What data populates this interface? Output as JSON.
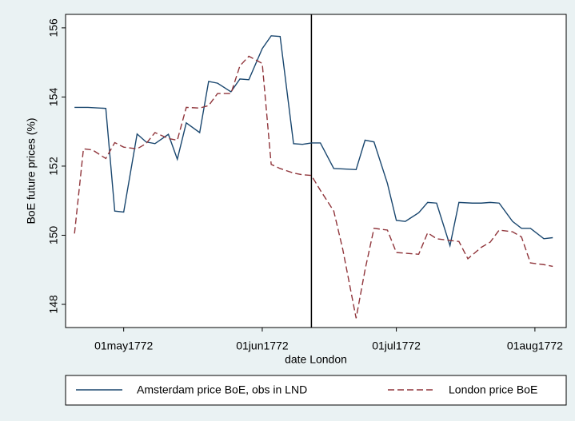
{
  "chart_data": {
    "type": "line",
    "xlabel": "date London",
    "ylabel": "BoE future prices (%)",
    "xlim": [
      "1772-04-18",
      "1772-08-08"
    ],
    "xticks": [
      {
        "value": "1772-05-01",
        "label": "01may1772"
      },
      {
        "value": "1772-06-01",
        "label": "01jun1772"
      },
      {
        "value": "1772-07-01",
        "label": "01jul1772"
      },
      {
        "value": "1772-08-01",
        "label": "01aug1772"
      }
    ],
    "ylim": [
      147.33,
      156.39
    ],
    "yticks": [
      148,
      150,
      152,
      154,
      156
    ],
    "grid": false,
    "vline": "1772-06-12",
    "legend": "bottom",
    "series": [
      {
        "name": "Amsterdam price BoE, obs in LND",
        "color": "#1a476f",
        "dash": "solid",
        "x": [
          "1772-04-20",
          "1772-04-23",
          "1772-04-27",
          "1772-04-29",
          "1772-05-01",
          "1772-05-04",
          "1772-05-06",
          "1772-05-08",
          "1772-05-11",
          "1772-05-13",
          "1772-05-15",
          "1772-05-18",
          "1772-05-20",
          "1772-05-22",
          "1772-05-25",
          "1772-05-27",
          "1772-05-29",
          "1772-06-01",
          "1772-06-03",
          "1772-06-05",
          "1772-06-08",
          "1772-06-10",
          "1772-06-12",
          "1772-06-14",
          "1772-06-17",
          "1772-06-19",
          "1772-06-22",
          "1772-06-24",
          "1772-06-26",
          "1772-06-29",
          "1772-07-01",
          "1772-07-03",
          "1772-07-06",
          "1772-07-08",
          "1772-07-10",
          "1772-07-13",
          "1772-07-15",
          "1772-07-18",
          "1772-07-20",
          "1772-07-22",
          "1772-07-24",
          "1772-07-27",
          "1772-07-29",
          "1772-07-31",
          "1772-08-03",
          "1772-08-05"
        ],
        "values": [
          153.7,
          153.7,
          153.67,
          150.7,
          150.67,
          152.93,
          152.7,
          152.65,
          152.92,
          152.2,
          153.25,
          152.97,
          154.45,
          154.4,
          154.15,
          154.52,
          154.5,
          155.4,
          155.77,
          155.75,
          152.65,
          152.63,
          152.67,
          152.67,
          151.93,
          151.92,
          151.9,
          152.75,
          152.7,
          151.5,
          150.43,
          150.4,
          150.65,
          150.95,
          150.93,
          149.7,
          150.95,
          150.93,
          150.93,
          150.95,
          150.93,
          150.4,
          150.2,
          150.2,
          149.9,
          149.93
        ]
      },
      {
        "name": "London price BoE",
        "color": "#90353b",
        "dash": "dashed",
        "x": [
          "1772-04-20",
          "1772-04-22",
          "1772-04-24",
          "1772-04-27",
          "1772-04-29",
          "1772-05-01",
          "1772-05-04",
          "1772-05-06",
          "1772-05-08",
          "1772-05-11",
          "1772-05-13",
          "1772-05-15",
          "1772-05-18",
          "1772-05-20",
          "1772-05-22",
          "1772-05-25",
          "1772-05-27",
          "1772-05-29",
          "1772-06-01",
          "1772-06-03",
          "1772-06-05",
          "1772-06-08",
          "1772-06-10",
          "1772-06-12",
          "1772-06-14",
          "1772-06-17",
          "1772-06-19",
          "1772-06-22",
          "1772-06-24",
          "1772-06-26",
          "1772-06-29",
          "1772-07-01",
          "1772-07-03",
          "1772-07-06",
          "1772-07-08",
          "1772-07-10",
          "1772-07-13",
          "1772-07-15",
          "1772-07-17",
          "1772-07-20",
          "1772-07-22",
          "1772-07-24",
          "1772-07-27",
          "1772-07-29",
          "1772-07-31",
          "1772-08-03",
          "1772-08-05"
        ],
        "values": [
          150.05,
          152.5,
          152.47,
          152.22,
          152.68,
          152.55,
          152.5,
          152.65,
          152.97,
          152.8,
          152.75,
          153.7,
          153.68,
          153.75,
          154.1,
          154.1,
          154.9,
          155.18,
          154.97,
          152.05,
          151.93,
          151.8,
          151.75,
          151.73,
          151.3,
          150.7,
          149.6,
          147.6,
          149.0,
          150.2,
          150.15,
          149.5,
          149.48,
          149.45,
          150.07,
          149.9,
          149.85,
          149.82,
          149.32,
          149.65,
          149.8,
          150.15,
          150.1,
          149.95,
          149.2,
          149.15,
          149.1
        ]
      }
    ]
  }
}
